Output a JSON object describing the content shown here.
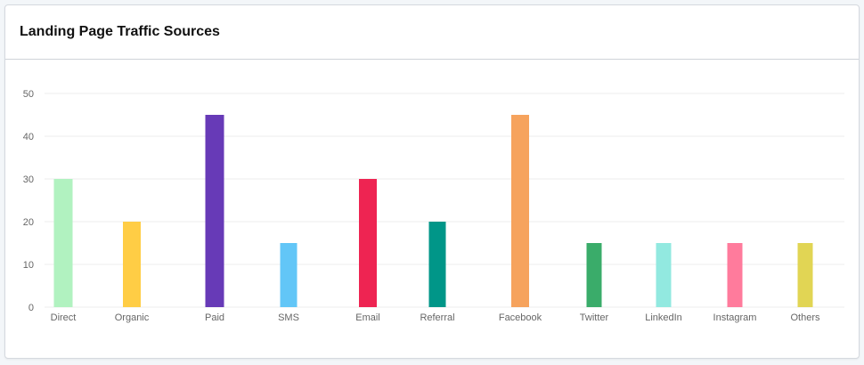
{
  "card": {
    "title": "Landing Page Traffic Sources"
  },
  "chart_data": {
    "type": "bar",
    "title": "Landing Page Traffic Sources",
    "xlabel": "",
    "ylabel": "",
    "ylim": [
      0,
      50
    ],
    "yticks": [
      0,
      10,
      20,
      30,
      40,
      50
    ],
    "grid": true,
    "categories": [
      "Direct",
      "Organic",
      "Paid",
      "SMS",
      "Email",
      "Referral",
      "Facebook",
      "Twitter",
      "LinkedIn",
      "Instagram",
      "Others"
    ],
    "values": [
      30,
      20,
      45,
      15,
      30,
      20,
      45,
      15,
      15,
      15,
      15
    ],
    "colors": [
      "#b1f2c0",
      "#ffcd45",
      "#673ab7",
      "#62c6f7",
      "#ee2452",
      "#009688",
      "#f6a35d",
      "#3aac6a",
      "#92e9e0",
      "#ff7b9c",
      "#e1d554"
    ]
  }
}
